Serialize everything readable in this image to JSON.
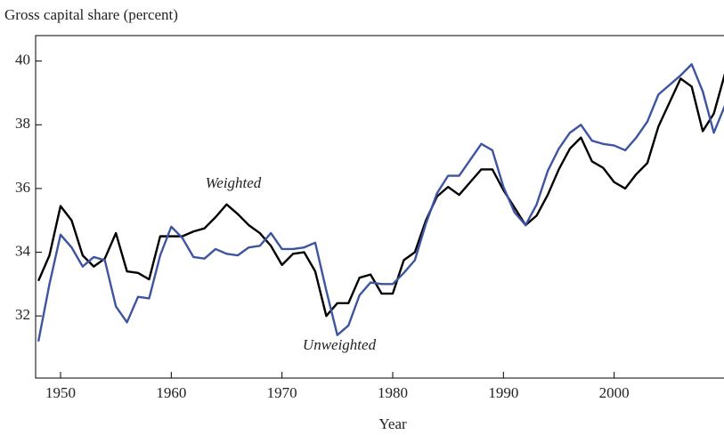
{
  "chart_data": {
    "type": "line",
    "y_label": "Gross capital share (percent)",
    "x_label": "Year",
    "x": [
      1948,
      1949,
      1950,
      1951,
      1952,
      1953,
      1954,
      1955,
      1956,
      1957,
      1958,
      1959,
      1960,
      1961,
      1962,
      1963,
      1964,
      1965,
      1966,
      1967,
      1968,
      1969,
      1970,
      1971,
      1972,
      1973,
      1974,
      1975,
      1976,
      1977,
      1978,
      1979,
      1980,
      1981,
      1982,
      1983,
      1984,
      1985,
      1986,
      1987,
      1988,
      1989,
      1990,
      1991,
      1992,
      1993,
      1994,
      1995,
      1996,
      1997,
      1998,
      1999,
      2000,
      2001,
      2002,
      2003,
      2004,
      2005,
      2006,
      2007,
      2008,
      2009,
      2010
    ],
    "series": [
      {
        "name": "Weighted",
        "color": "#000000",
        "values": [
          33.1,
          33.9,
          35.45,
          35.0,
          33.9,
          33.55,
          33.8,
          34.6,
          33.4,
          33.35,
          33.15,
          34.5,
          34.5,
          34.5,
          34.65,
          34.75,
          35.1,
          35.5,
          35.2,
          34.85,
          34.6,
          34.2,
          33.6,
          33.95,
          34.0,
          33.4,
          32.0,
          32.4,
          32.4,
          33.2,
          33.3,
          32.7,
          32.7,
          33.75,
          34.0,
          35.0,
          35.75,
          36.05,
          35.8,
          36.2,
          36.6,
          36.6,
          35.95,
          35.4,
          34.85,
          35.15,
          35.8,
          36.6,
          37.25,
          37.6,
          36.85,
          36.65,
          36.2,
          36.0,
          36.45,
          36.8,
          37.95,
          38.7,
          39.45,
          39.2,
          37.8,
          38.35,
          39.6
        ]
      },
      {
        "name": "Unweighted",
        "color": "#3d55a0",
        "values": [
          31.2,
          33.0,
          34.55,
          34.15,
          33.55,
          33.85,
          33.75,
          32.3,
          31.8,
          32.6,
          32.55,
          33.9,
          34.8,
          34.45,
          33.85,
          33.8,
          34.1,
          33.95,
          33.9,
          34.15,
          34.2,
          34.6,
          34.1,
          34.1,
          34.15,
          34.3,
          32.8,
          31.4,
          31.7,
          32.65,
          33.05,
          33.0,
          33.0,
          33.35,
          33.75,
          34.9,
          35.85,
          36.4,
          36.4,
          36.9,
          37.4,
          37.2,
          36.05,
          35.25,
          34.85,
          35.5,
          36.55,
          37.25,
          37.75,
          38.0,
          37.5,
          37.4,
          37.35,
          37.2,
          37.6,
          38.1,
          38.95,
          39.25,
          39.55,
          39.9,
          39.05,
          37.75,
          38.6
        ]
      }
    ],
    "xlim": [
      1947.75,
      2010
    ],
    "ylim": [
      30.05,
      40.8
    ],
    "xticks": [
      1950,
      1960,
      1970,
      1980,
      1990,
      2000
    ],
    "yticks": [
      32,
      34,
      36,
      38,
      40
    ],
    "grid": false
  }
}
